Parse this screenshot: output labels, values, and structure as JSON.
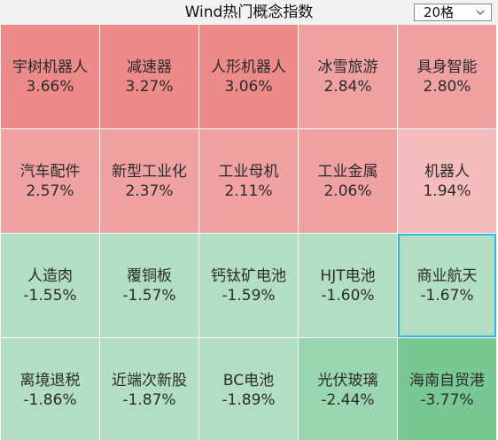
{
  "header": {
    "title": "Wind热门概念指数",
    "count_select": "20格"
  },
  "colors": {
    "up_strong": "#ed8a8a",
    "up_mid": "#f0a1a1",
    "up_light": "#f4bcbc",
    "down_light": "#b2dfc4",
    "down_mid": "#9ad7b1",
    "down_strong": "#79c894",
    "selected_border": "#35b6dc"
  },
  "tiles": [
    {
      "name": "宇树机器人",
      "change": "3.66%",
      "color": "#ed8a8a"
    },
    {
      "name": "减速器",
      "change": "3.27%",
      "color": "#ed8a8a"
    },
    {
      "name": "人形机器人",
      "change": "3.06%",
      "color": "#ed8a8a"
    },
    {
      "name": "冰雪旅游",
      "change": "2.84%",
      "color": "#f0a1a1"
    },
    {
      "name": "具身智能",
      "change": "2.80%",
      "color": "#f0a1a1"
    },
    {
      "name": "汽车配件",
      "change": "2.57%",
      "color": "#f0a1a1"
    },
    {
      "name": "新型工业化",
      "change": "2.37%",
      "color": "#f0a1a1"
    },
    {
      "name": "工业母机",
      "change": "2.11%",
      "color": "#f0a1a1"
    },
    {
      "name": "工业金属",
      "change": "2.06%",
      "color": "#f0a1a1"
    },
    {
      "name": "机器人",
      "change": "1.94%",
      "color": "#f4bcbc"
    },
    {
      "name": "人造肉",
      "change": "-1.55%",
      "color": "#b2dfc4"
    },
    {
      "name": "覆铜板",
      "change": "-1.57%",
      "color": "#b2dfc4"
    },
    {
      "name": "钙钛矿电池",
      "change": "-1.59%",
      "color": "#b2dfc4"
    },
    {
      "name": "HJT电池",
      "change": "-1.60%",
      "color": "#b2dfc4"
    },
    {
      "name": "商业航天",
      "change": "-1.67%",
      "color": "#b2dfc4",
      "selected": true
    },
    {
      "name": "离境退税",
      "change": "-1.86%",
      "color": "#b2dfc4"
    },
    {
      "name": "近端次新股",
      "change": "-1.87%",
      "color": "#b2dfc4"
    },
    {
      "name": "BC电池",
      "change": "-1.89%",
      "color": "#b2dfc4"
    },
    {
      "name": "光伏玻璃",
      "change": "-2.44%",
      "color": "#9ad7b1"
    },
    {
      "name": "海南自贸港",
      "change": "-3.77%",
      "color": "#79c894"
    }
  ]
}
